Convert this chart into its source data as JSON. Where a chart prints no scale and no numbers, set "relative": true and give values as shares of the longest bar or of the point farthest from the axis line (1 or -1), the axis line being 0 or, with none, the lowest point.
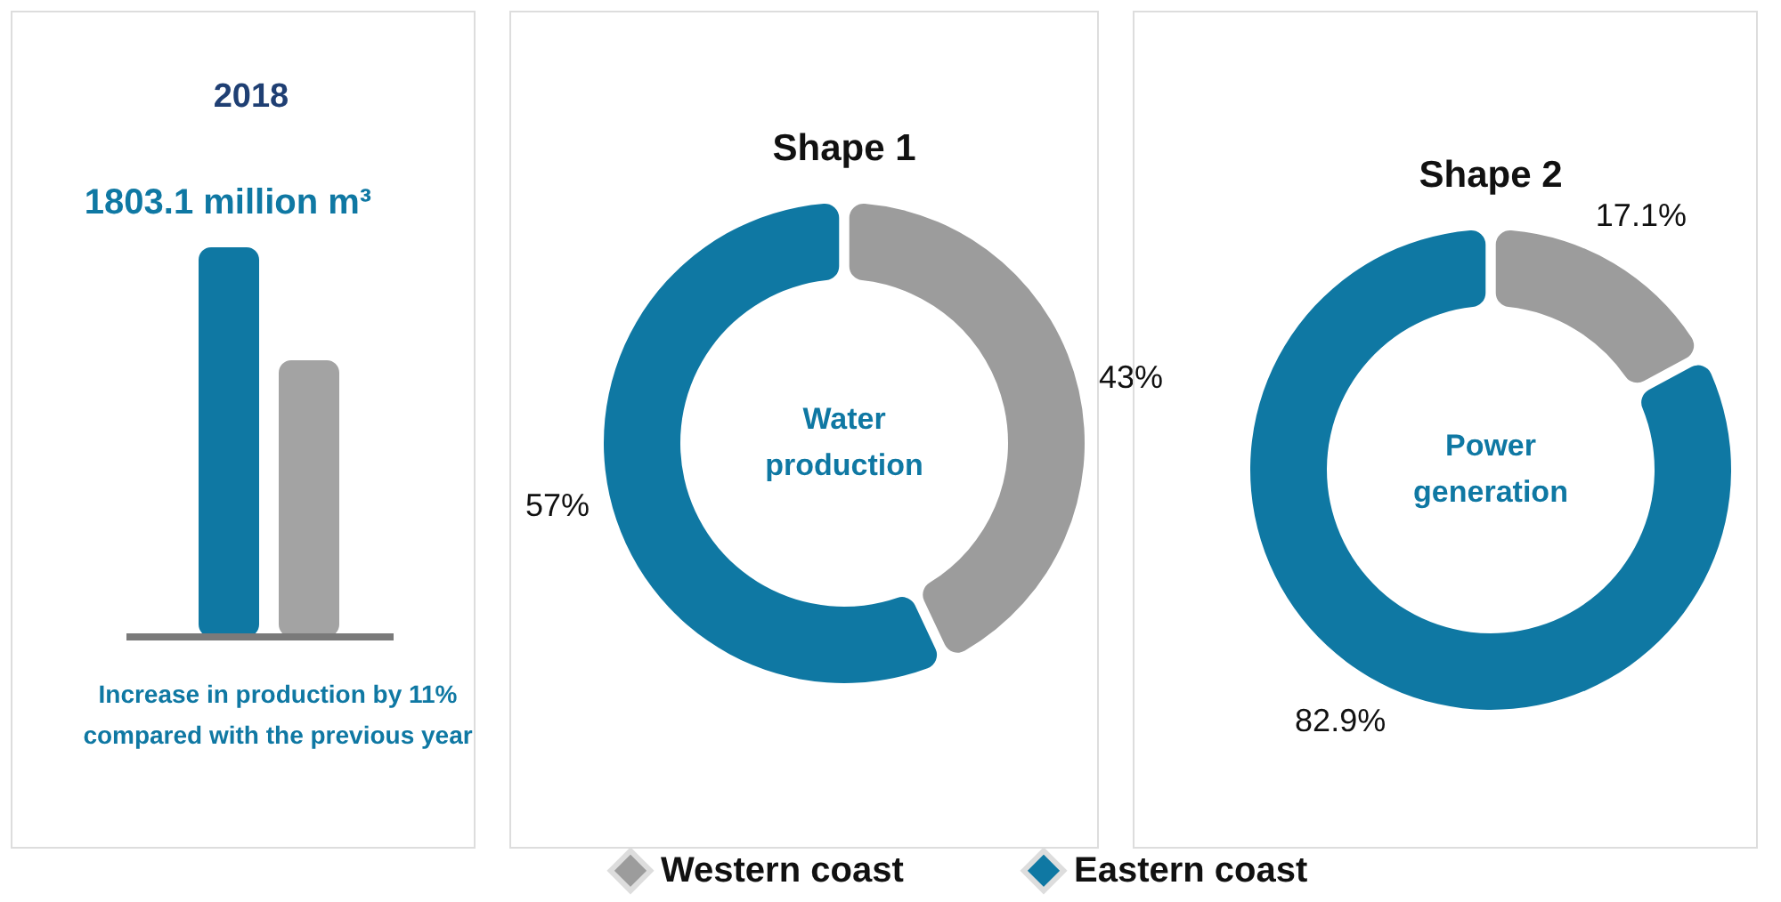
{
  "chart_data": [
    {
      "type": "bar",
      "title": "2018",
      "subtitle": "1803.1 million m³",
      "relative": true,
      "categories": [
        null,
        null
      ],
      "values": [
        1,
        0.71
      ],
      "colors": [
        "#0f78a3",
        "#a3a3a3"
      ],
      "annotations": [
        "Increase in production by 11% compared with the previous year"
      ]
    },
    {
      "type": "donut",
      "title": "Shape 1",
      "categories": [
        null,
        null
      ],
      "values": [
        43,
        57
      ],
      "colors": [
        "#9c9c9c",
        "#0f78a3"
      ],
      "value_labels": [
        "43%",
        "57%"
      ],
      "annotations": [
        "Water production"
      ]
    },
    {
      "type": "donut",
      "title": "Shape 2",
      "categories": [
        "Western coast",
        "Eastern coast"
      ],
      "values": [
        17.1,
        82.9
      ],
      "colors": [
        "#9c9c9c",
        "#0f78a3"
      ],
      "value_labels": [
        "17.1%",
        "82.9%"
      ],
      "legend": "bottom",
      "annotations": [
        "Power generation"
      ]
    }
  ]
}
